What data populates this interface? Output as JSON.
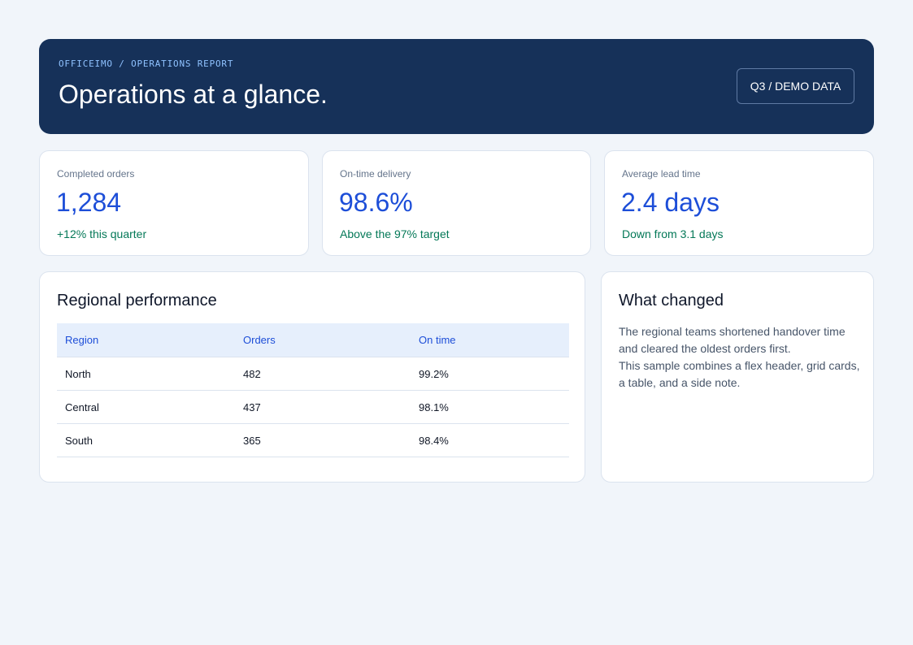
{
  "header": {
    "eyebrow": "OFFICEIMO / OPERATIONS REPORT",
    "title": "Operations at a glance.",
    "badge": "Q3 / DEMO DATA"
  },
  "kpis": [
    {
      "label": "Completed orders",
      "value": "1,284",
      "note": "+12% this quarter"
    },
    {
      "label": "On-time delivery",
      "value": "98.6%",
      "note": "Above the 97% target"
    },
    {
      "label": "Average lead time",
      "value": "2.4 days",
      "note": "Down from 3.1 days"
    }
  ],
  "regional": {
    "title": "Regional performance",
    "columns": [
      "Region",
      "Orders",
      "On time"
    ],
    "rows": [
      [
        "North",
        "482",
        "99.2%"
      ],
      [
        "Central",
        "437",
        "98.1%"
      ],
      [
        "South",
        "365",
        "98.4%"
      ]
    ]
  },
  "changes": {
    "title": "What changed",
    "paragraphs": [
      "The regional teams shortened handover time and cleared the oldest orders first.",
      "This sample combines a flex header, grid cards, a table, and a side note."
    ]
  },
  "colors": {
    "header_bg": "#163159",
    "accent": "#1d4ed8",
    "positive": "#047857",
    "page_bg": "#f1f5fa"
  }
}
